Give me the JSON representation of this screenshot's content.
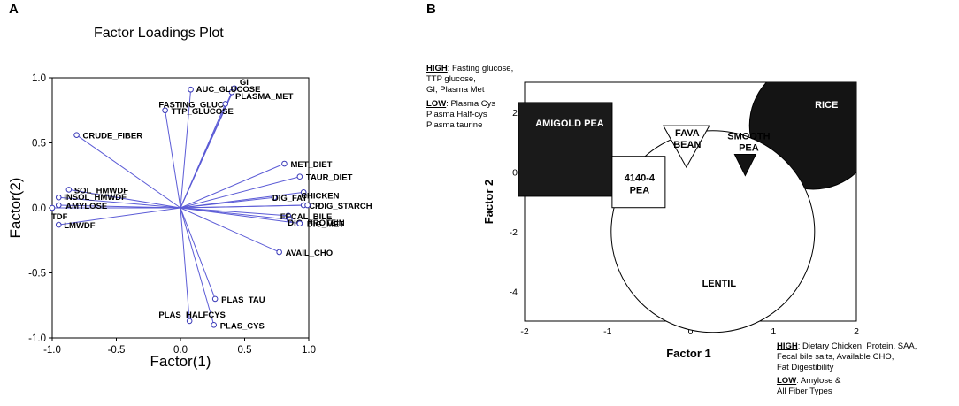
{
  "panels": {
    "a": "A",
    "b": "B"
  },
  "chart_data": [
    {
      "type": "scatter",
      "title": "Factor Loadings Plot",
      "xlabel": "Factor(1)",
      "ylabel": "Factor(2)",
      "xlim": [
        -1.0,
        1.0
      ],
      "ylim": [
        -1.0,
        1.0
      ],
      "xticks": [
        "-1.0",
        "-0.5",
        "0.0",
        "0.5",
        "1.0"
      ],
      "yticks": [
        "1.0",
        "0.5",
        "0.0",
        "-0.5",
        "-1.0"
      ],
      "vectors_from_origin": true,
      "points": [
        {
          "label": "GI",
          "x": 0.42,
          "y": 0.92
        },
        {
          "label": "PLASMA_MET",
          "x": 0.4,
          "y": 0.89
        },
        {
          "label": "AUC_GLUCOSE",
          "x": 0.08,
          "y": 0.91
        },
        {
          "label": "FASTING_GLUC",
          "x": 0.35,
          "y": 0.8
        },
        {
          "label": "TTP_GLUCOSE",
          "x": -0.12,
          "y": 0.75
        },
        {
          "label": "CRUDE_FIBER",
          "x": -0.81,
          "y": 0.56
        },
        {
          "label": "MET_DIET",
          "x": 0.81,
          "y": 0.34
        },
        {
          "label": "TAUR_DIET",
          "x": 0.93,
          "y": 0.24
        },
        {
          "label": "CHICKEN",
          "x": 0.96,
          "y": 0.12
        },
        {
          "label": "DIG_FAT",
          "x": 0.73,
          "y": 0.08
        },
        {
          "label": "CP",
          "x": 0.96,
          "y": 0.02
        },
        {
          "label": "DIG_STARCH",
          "x": 0.99,
          "y": 0.02
        },
        {
          "label": "FECAL_BILE",
          "x": 0.84,
          "y": -0.06
        },
        {
          "label": "DIG_PROTEIN",
          "x": 0.85,
          "y": -0.09
        },
        {
          "label": "DIG_MET",
          "x": 0.93,
          "y": -0.12
        },
        {
          "label": "AVAIL_CHO",
          "x": 0.77,
          "y": -0.34
        },
        {
          "label": "SOL_HMWDF",
          "x": -0.87,
          "y": 0.14
        },
        {
          "label": "INSOL_HMWDF",
          "x": -0.95,
          "y": 0.08
        },
        {
          "label": "AMYLOSE",
          "x": -0.95,
          "y": 0.02
        },
        {
          "label": "TDF",
          "x": -1.0,
          "y": 0.0
        },
        {
          "label": "LMWDF",
          "x": -0.95,
          "y": -0.13
        },
        {
          "label": "PLAS_TAU",
          "x": 0.27,
          "y": -0.7
        },
        {
          "label": "PLAS_HALFCYS",
          "x": 0.07,
          "y": -0.87
        },
        {
          "label": "PLAS_CYS",
          "x": 0.26,
          "y": -0.9
        }
      ]
    },
    {
      "type": "scatter",
      "xlabel": "Factor 1",
      "ylabel": "Factor 2",
      "xlim": [
        -2,
        2
      ],
      "ylim": [
        -5,
        3
      ],
      "xticks": [
        "-2",
        "-1",
        "0",
        "1",
        "2"
      ],
      "yticks": [
        "2",
        "0",
        "-2",
        "-4"
      ],
      "groups": [
        {
          "label": "AMIGOLD PEA",
          "shape": "square",
          "fill": "black",
          "x": -1.51,
          "y": 0.75
        },
        {
          "label": "4140-4 PEA",
          "shape": "square",
          "fill": "white",
          "x": -0.7,
          "y": -0.34
        },
        {
          "label": "FAVA BEAN",
          "shape": "triangle-down",
          "fill": "white",
          "x": -0.05,
          "y": 1.22
        },
        {
          "label": "SMOOTH PEA",
          "shape": "triangle-down",
          "fill": "black",
          "x": 0.66,
          "y": 0.26
        },
        {
          "label": "RICE",
          "shape": "circle",
          "fill": "black",
          "x": 1.48,
          "y": 1.55
        },
        {
          "label": "LENTIL",
          "shape": "circle",
          "fill": "white",
          "x": 0.27,
          "y": -2.0
        }
      ]
    }
  ],
  "notes": {
    "top": {
      "high_label": "HIGH",
      "high_text": ": Fasting glucose,",
      "high_lines": [
        "TTP glucose,",
        "GI, Plasma Met"
      ],
      "low_label": "LOW",
      "low_text": ": Plasma Cys",
      "low_lines": [
        "Plasma Half-cys",
        "Plasma taurine"
      ]
    },
    "bottom": {
      "high_label": "HIGH",
      "high_text": ": Dietary Chicken, Protein, SAA,",
      "high_lines": [
        "Fecal bile salts, Available CHO,",
        "Fat Digestibility"
      ],
      "low_label": "LOW",
      "low_text": ": Amylose &",
      "low_lines": [
        "All Fiber Types"
      ]
    }
  },
  "colors": {
    "vector": "#5b5bd6",
    "marker": "#3a3ab8",
    "axis": "#000000"
  }
}
